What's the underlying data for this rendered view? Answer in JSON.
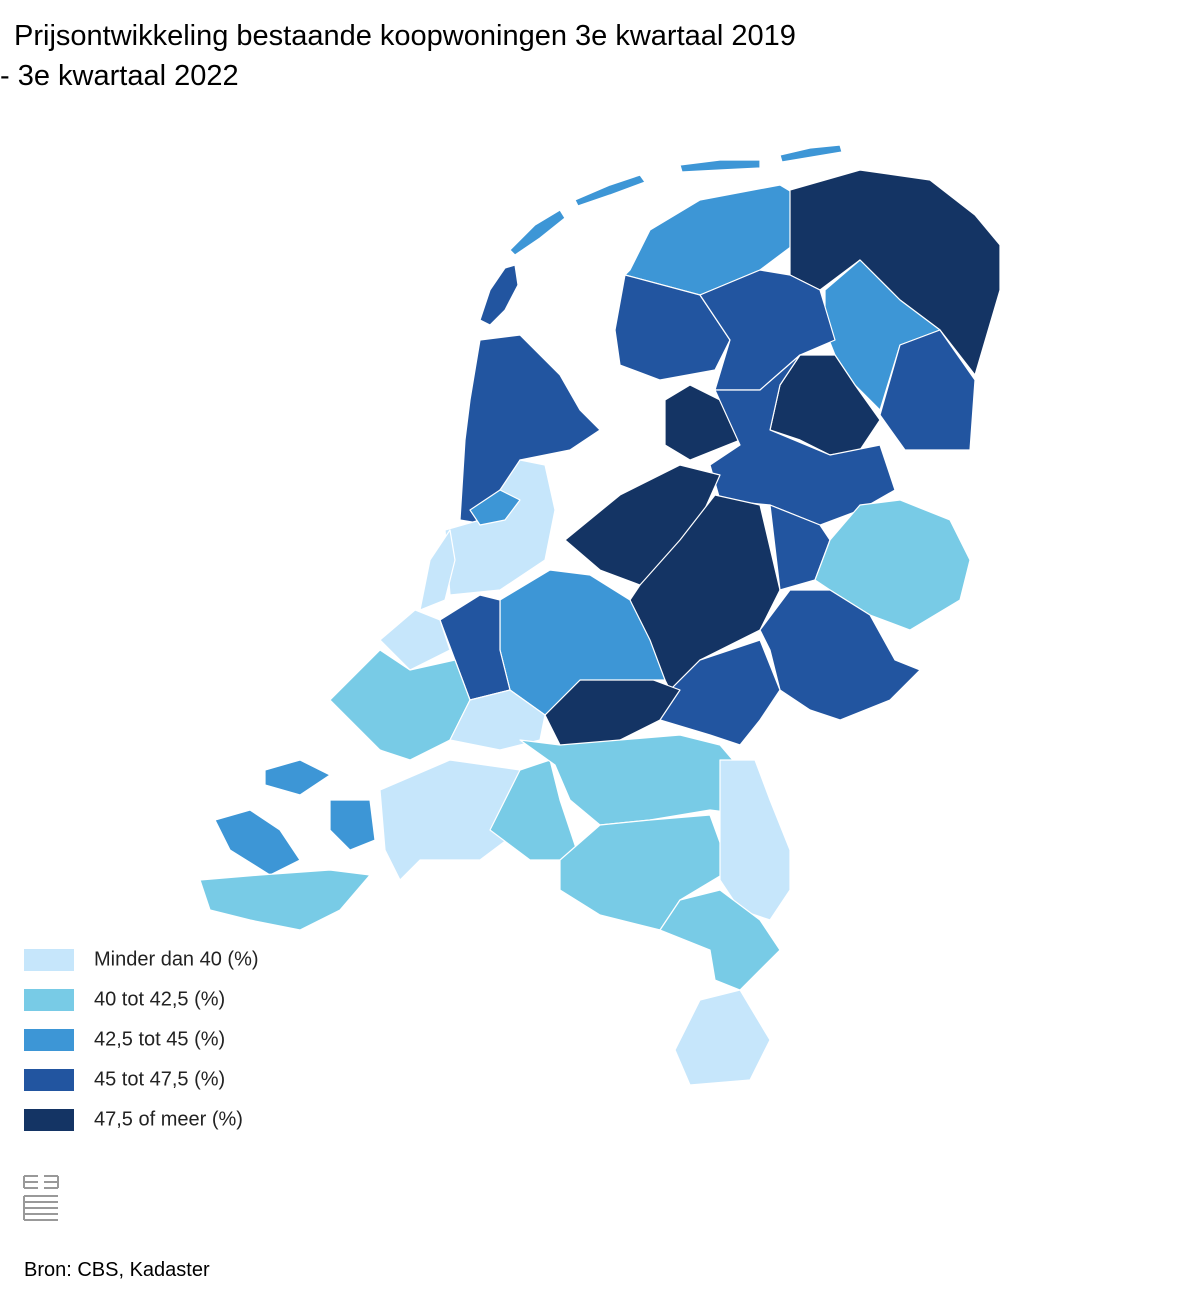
{
  "header": {
    "title": [
      "Prijsontwikkeling bestaande koopwoningen 3e kwartaal 2019",
      "- 3e kwartaal 2022"
    ]
  },
  "legend": {
    "items": [
      {
        "label": "Minder dan 40 (%)",
        "color": "#c6e6fb"
      },
      {
        "label": "40 tot 42,5 (%)",
        "color": "#78cbe6"
      },
      {
        "label": "42,5 tot 45 (%)",
        "color": "#3d96d6"
      },
      {
        "label": "45 tot 47,5 (%)",
        "color": "#2255a0"
      },
      {
        "label": "47,5 of meer (%)",
        "color": "#143464"
      }
    ]
  },
  "footer": {
    "source": "Bron: CBS, Kadaster"
  }
}
